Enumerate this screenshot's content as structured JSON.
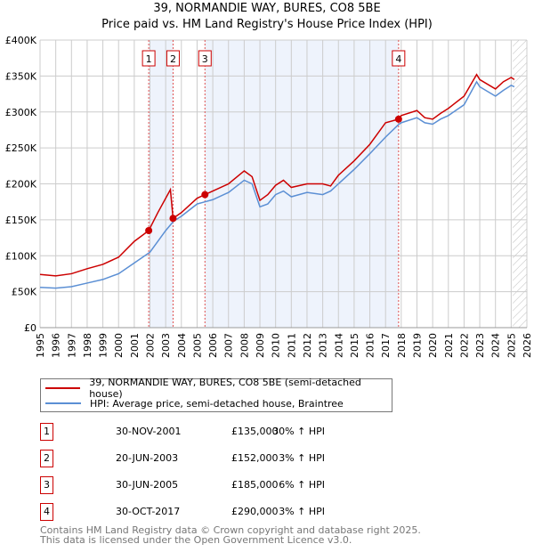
{
  "title": "39, NORMANDIE WAY, BURES, CO8 5BE",
  "subtitle": "Price paid vs. HM Land Registry's House Price Index (HPI)",
  "chart_data": {
    "type": "line",
    "ylim": [
      0,
      400000
    ],
    "xlim": [
      1995,
      2026
    ],
    "y_ticks": [
      {
        "v": 0,
        "label": "£0"
      },
      {
        "v": 50000,
        "label": "£50K"
      },
      {
        "v": 100000,
        "label": "£100K"
      },
      {
        "v": 150000,
        "label": "£150K"
      },
      {
        "v": 200000,
        "label": "£200K"
      },
      {
        "v": 250000,
        "label": "£250K"
      },
      {
        "v": 300000,
        "label": "£300K"
      },
      {
        "v": 350000,
        "label": "£350K"
      },
      {
        "v": 400000,
        "label": "£400K"
      }
    ],
    "x_ticks": [
      "1995",
      "1996",
      "1997",
      "1998",
      "1999",
      "2000",
      "2001",
      "2002",
      "2003",
      "2004",
      "2005",
      "2006",
      "2007",
      "2008",
      "2009",
      "2010",
      "2011",
      "2012",
      "2013",
      "2014",
      "2015",
      "2016",
      "2017",
      "2018",
      "2019",
      "2020",
      "2021",
      "2022",
      "2023",
      "2024",
      "2025",
      "2026"
    ],
    "forecast_start": 2025.1,
    "shaded_ranges": [
      [
        2001.92,
        2003.47
      ],
      [
        2005.5,
        2017.83
      ]
    ],
    "series": [
      {
        "name": "39, NORMANDIE WAY, BURES, CO8 5BE (semi-detached house)",
        "color": "#cc0000",
        "x": [
          1995,
          1996,
          1997,
          1998,
          1999,
          2000,
          2001,
          2001.92,
          2002.5,
          2003.3,
          2003.47,
          2004,
          2005,
          2005.5,
          2006,
          2007,
          2008,
          2008.5,
          2009,
          2009.5,
          2010,
          2010.5,
          2011,
          2012,
          2013,
          2013.5,
          2014,
          2015,
          2016,
          2017,
          2017.83,
          2018,
          2019,
          2019.5,
          2020,
          2020.5,
          2021,
          2022,
          2022.8,
          2023,
          2024,
          2024.5,
          2025,
          2025.2
        ],
        "y": [
          74000,
          72000,
          75000,
          82000,
          88000,
          98000,
          120000,
          135000,
          160000,
          192000,
          152000,
          160000,
          180000,
          185000,
          190000,
          200000,
          218000,
          210000,
          177000,
          185000,
          198000,
          205000,
          195000,
          200000,
          200000,
          197000,
          212000,
          232000,
          255000,
          285000,
          290000,
          295000,
          302000,
          292000,
          290000,
          298000,
          305000,
          322000,
          352000,
          345000,
          332000,
          342000,
          348000,
          345000
        ]
      },
      {
        "name": "HPI: Average price, semi-detached house, Braintree",
        "color": "#5b8fd4",
        "x": [
          1995,
          1996,
          1997,
          1998,
          1999,
          2000,
          2001,
          2002,
          2003,
          2003.5,
          2004,
          2005,
          2005.5,
          2006,
          2007,
          2008,
          2008.5,
          2009,
          2009.5,
          2010,
          2010.5,
          2011,
          2012,
          2013,
          2013.5,
          2014,
          2015,
          2016,
          2017,
          2017.8,
          2018,
          2019,
          2019.5,
          2020,
          2020.5,
          2021,
          2022,
          2022.8,
          2023,
          2024,
          2024.5,
          2025,
          2025.2
        ],
        "y": [
          56000,
          55000,
          57000,
          62000,
          67000,
          75000,
          90000,
          105000,
          135000,
          148000,
          155000,
          172000,
          175000,
          178000,
          188000,
          205000,
          200000,
          168000,
          172000,
          185000,
          190000,
          182000,
          188000,
          185000,
          190000,
          200000,
          220000,
          242000,
          265000,
          282000,
          285000,
          292000,
          285000,
          283000,
          290000,
          295000,
          310000,
          342000,
          335000,
          322000,
          330000,
          337000,
          335000
        ]
      }
    ],
    "sales": [
      {
        "id": "1",
        "x": 2001.92,
        "y": 135000,
        "date": "30-NOV-2001",
        "price": "£135,000",
        "hpi": "30% ↑ HPI"
      },
      {
        "id": "2",
        "x": 2003.47,
        "y": 152000,
        "date": "20-JUN-2003",
        "price": "£152,000",
        "hpi": "3% ↑ HPI"
      },
      {
        "id": "3",
        "x": 2005.5,
        "y": 185000,
        "date": "30-JUN-2005",
        "price": "£185,000",
        "hpi": "6% ↑ HPI"
      },
      {
        "id": "4",
        "x": 2017.83,
        "y": 290000,
        "date": "30-OCT-2017",
        "price": "£290,000",
        "hpi": "3% ↑ HPI"
      }
    ]
  },
  "footer": {
    "line1": "Contains HM Land Registry data © Crown copyright and database right 2025.",
    "line2": "This data is licensed under the Open Government Licence v3.0."
  }
}
